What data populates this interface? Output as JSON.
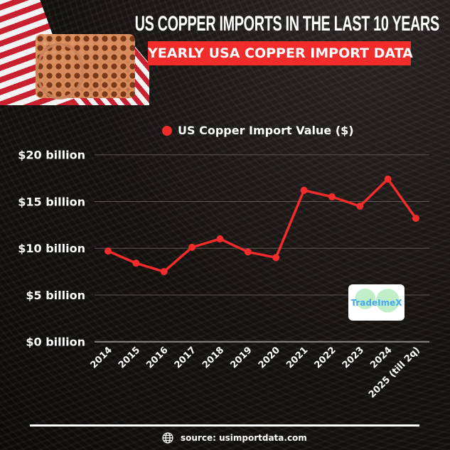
{
  "header": {
    "title": "US COPPER IMPORTS IN THE LAST 10 YEARS",
    "subtitle": "YEARLY USA COPPER IMPORT DATA"
  },
  "logo": {
    "text": "TradeImeX"
  },
  "footer": {
    "source": "source: usimportdata.com",
    "icon": "globe-icon"
  },
  "chart_data": {
    "type": "line",
    "title": "",
    "xlabel": "",
    "ylabel": "",
    "categories": [
      "2014",
      "2015",
      "2016",
      "2017",
      "2018",
      "2019",
      "2020",
      "2021",
      "2022",
      "2023",
      "2024",
      "2025 (till 2q)"
    ],
    "series": [
      {
        "name": "US Copper Import Value ($)",
        "color": "#f22b2b",
        "values": [
          9.7,
          8.4,
          7.5,
          10.1,
          11.0,
          9.6,
          9.0,
          16.2,
          15.5,
          14.5,
          17.4,
          13.2
        ]
      }
    ],
    "y_unit": "billion USD",
    "ylim": [
      0,
      20
    ],
    "yticks": [
      0,
      5,
      10,
      15,
      20
    ],
    "ytick_labels": [
      "$0 billion",
      "$5 billion",
      "$10 billion",
      "$15 billion",
      "$20 billion"
    ],
    "grid": true,
    "legend": "top"
  }
}
